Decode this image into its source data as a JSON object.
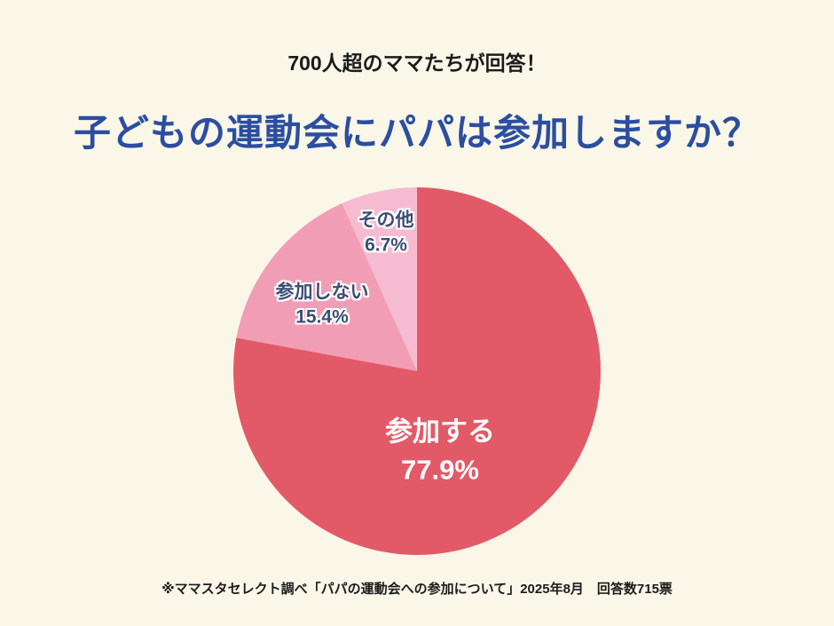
{
  "background_color": "#FAF7E8",
  "header": {
    "subtitle": "700人超のママたちが回答！",
    "title": "子どもの運動会にパパは参加しますか？",
    "title_color": "#2B4EA2",
    "subtitle_color": "#1B1B1B"
  },
  "footnote": "※ママスタセレクト調べ「パパの運動会への参加について」2025年8月　回答数715票",
  "chart_data": {
    "type": "pie",
    "title": "子どもの運動会にパパは参加しますか？",
    "start_angle_deg": 0,
    "direction": "clockwise",
    "unit": "%",
    "slices": [
      {
        "label": "参加する",
        "value": 77.9,
        "pct_text": "77.9%",
        "color": "#E25A67",
        "label_color": "#FFFFFF"
      },
      {
        "label": "参加しない",
        "value": 15.4,
        "pct_text": "15.4%",
        "color": "#F29DB6",
        "label_color": "#3D4E74"
      },
      {
        "label": "その他",
        "value": 6.7,
        "pct_text": "6.7%",
        "color": "#F6BBD1",
        "label_color": "#3D4E74"
      }
    ]
  }
}
